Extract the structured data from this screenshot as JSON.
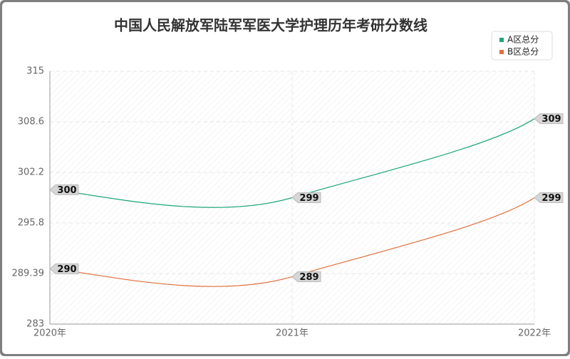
{
  "chart_data": {
    "type": "line",
    "title": "中国人民解放军陆军军医大学护理历年考研分数线",
    "categories": [
      "2020年",
      "2021年",
      "2022年"
    ],
    "series": [
      {
        "name": "A区总分",
        "color": "#1fa67a",
        "values": [
          300,
          299,
          309
        ]
      },
      {
        "name": "B区总分",
        "color": "#e0703c",
        "values": [
          290,
          289,
          299
        ]
      }
    ],
    "ylim": [
      283,
      315
    ],
    "yticks": [
      283,
      289.39,
      295.8,
      302.2,
      308.6,
      315
    ],
    "grid": true,
    "legend": "top-right"
  }
}
